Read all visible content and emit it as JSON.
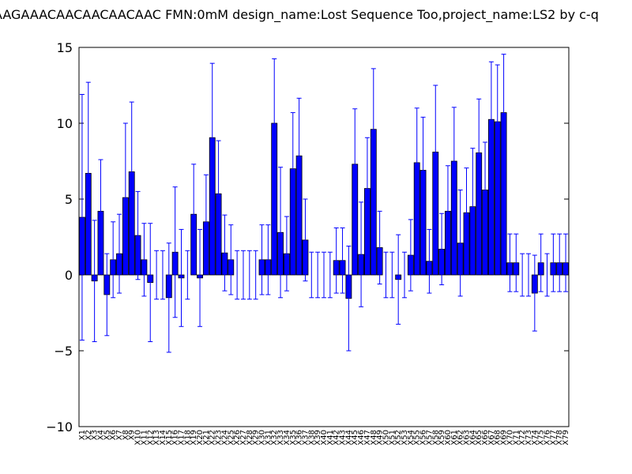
{
  "chart_data": {
    "type": "bar",
    "title": "AAGAAACAACAACAACAAC  FMN:0mM  design_name:Lost Sequence Too,project_name:LS2 by c-q",
    "categories": [
      "X1",
      "X2",
      "X3",
      "X4",
      "X5",
      "X6",
      "X7",
      "X8",
      "X9",
      "X10",
      "X11",
      "X12",
      "X13",
      "X14",
      "X15",
      "X16",
      "X17",
      "X18",
      "X19",
      "X20",
      "X21",
      "X22",
      "X23",
      "X24",
      "X25",
      "X26",
      "X27",
      "X28",
      "X29",
      "X30",
      "X31",
      "X32",
      "X33",
      "X34",
      "X35",
      "X36",
      "X37",
      "X38",
      "X39",
      "X40",
      "X41",
      "X42",
      "X43",
      "X44",
      "X45",
      "X46",
      "X47",
      "X48",
      "X49",
      "X50",
      "X51",
      "X52",
      "X53",
      "X54",
      "X55",
      "X56",
      "X57",
      "X58",
      "X59",
      "X60",
      "X61",
      "X62",
      "X63",
      "X64",
      "X65",
      "X66",
      "X67",
      "X68",
      "X69",
      "X70",
      "X71",
      "X72",
      "X73",
      "X74",
      "X75",
      "X76",
      "X77",
      "X78",
      "X79"
    ],
    "values": [
      3.8,
      6.7,
      -0.4,
      4.2,
      -1.3,
      1.0,
      1.4,
      5.1,
      6.8,
      2.6,
      1.0,
      -0.5,
      0,
      0,
      -1.5,
      1.5,
      -0.2,
      0,
      4.0,
      -0.2,
      3.5,
      9.05,
      5.35,
      1.45,
      1.0,
      0,
      0,
      0,
      0,
      1.0,
      1.0,
      10.0,
      2.8,
      1.4,
      7.0,
      7.85,
      2.3,
      0,
      0,
      0,
      0,
      0.95,
      0.95,
      -1.55,
      7.3,
      1.35,
      5.7,
      9.6,
      1.8,
      0,
      0,
      -0.3,
      0,
      1.3,
      7.4,
      6.9,
      0.9,
      8.1,
      1.7,
      4.2,
      7.5,
      2.1,
      4.1,
      4.5,
      8.05,
      5.6,
      10.25,
      10.1,
      10.7,
      0.8,
      0.8,
      0,
      0,
      -1.2,
      0.8,
      0,
      0.8,
      0.8,
      0.8
    ],
    "errors": [
      8.1,
      6.0,
      4.0,
      3.4,
      2.7,
      2.5,
      2.6,
      4.9,
      4.6,
      2.9,
      2.4,
      3.9,
      1.6,
      1.6,
      3.6,
      4.3,
      3.2,
      1.6,
      3.3,
      3.2,
      3.1,
      4.9,
      3.5,
      2.5,
      2.3,
      1.6,
      1.6,
      1.6,
      1.6,
      2.3,
      2.3,
      4.25,
      4.3,
      2.45,
      3.7,
      3.8,
      2.7,
      1.5,
      1.5,
      1.5,
      1.5,
      2.15,
      2.15,
      3.45,
      3.65,
      3.45,
      3.35,
      4.0,
      2.4,
      1.5,
      1.5,
      2.95,
      1.5,
      2.35,
      3.6,
      3.5,
      2.1,
      4.4,
      2.35,
      3.0,
      3.55,
      3.5,
      2.95,
      3.85,
      3.55,
      3.15,
      3.8,
      3.75,
      3.85,
      1.9,
      1.9,
      1.4,
      1.4,
      2.5,
      1.9,
      1.4,
      1.9,
      1.9,
      1.9
    ],
    "color": "#0000ff",
    "error_color": "#0000ff",
    "ylim": [
      -10,
      15
    ],
    "yticks": [
      {
        "value": -10,
        "label": "−10"
      },
      {
        "value": -5,
        "label": "−5"
      },
      0,
      5,
      10,
      15
    ],
    "grid": false
  }
}
